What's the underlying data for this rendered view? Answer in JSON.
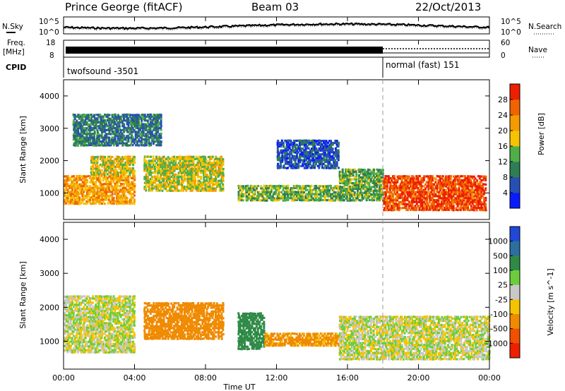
{
  "header": {
    "station": "Prince George (fitACF)",
    "beam": "Beam 03",
    "date": "22/Oct/2013"
  },
  "labels": {
    "nsky": "N.Sky",
    "nsearch": "N.Search",
    "freq": "Freq.",
    "freq_unit": "[MHz]",
    "nave": "Nave",
    "cpid": "CPID"
  },
  "top_panels": {
    "noise_ticks_left": [
      "10^5",
      "10^0"
    ],
    "noise_ticks_right": [
      "10^5",
      "10^0"
    ],
    "freq_ticks_left": [
      "18",
      "8"
    ],
    "nave_ticks_right": [
      "60",
      "0"
    ]
  },
  "cpid_modes": [
    {
      "text": "twofsound  -3501",
      "start_hour": 0
    },
    {
      "text": "normal (fast) 151",
      "start_hour": 18
    }
  ],
  "time_axis": {
    "label": "Time UT",
    "ticks": [
      "00:00",
      "04:00",
      "08:00",
      "12:00",
      "16:00",
      "20:00",
      "00:00"
    ],
    "range_hours": [
      0,
      24
    ]
  },
  "chart_data": [
    {
      "type": "heatmap",
      "title": "",
      "parameter": "Power",
      "colorbar_label": "Power [dB]",
      "xlabel": "",
      "ylabel": "Slant Range [km]",
      "xlim": [
        0,
        24
      ],
      "ylim": [
        180,
        4500
      ],
      "yticks": [
        1000,
        2000,
        3000,
        4000
      ],
      "colorbar_ticks": [
        "4",
        "8",
        "12",
        "16",
        "20",
        "24",
        "28"
      ],
      "colorbar_range": [
        0,
        32
      ],
      "colors": [
        "#0a1cff",
        "#2850b4",
        "#2e7d54",
        "#4fae46",
        "#f5c300",
        "#f59a00",
        "#f06400",
        "#ee1e00"
      ],
      "regions": [
        {
          "t0": 0.0,
          "t1": 4.0,
          "r0": 700,
          "r1": 1600,
          "v": 22
        },
        {
          "t0": 1.5,
          "t1": 4.0,
          "r0": 1600,
          "r1": 2200,
          "v": 18
        },
        {
          "t0": 4.5,
          "t1": 9.0,
          "r0": 1100,
          "r1": 2200,
          "v": 17
        },
        {
          "t0": 9.8,
          "t1": 15.5,
          "r0": 800,
          "r1": 1300,
          "v": 14
        },
        {
          "t0": 15.5,
          "t1": 18.0,
          "r0": 800,
          "r1": 1800,
          "v": 13
        },
        {
          "t0": 18.0,
          "t1": 23.8,
          "r0": 500,
          "r1": 1600,
          "v": 28
        },
        {
          "t0": 12.0,
          "t1": 15.5,
          "r0": 1800,
          "r1": 2700,
          "v": 6
        },
        {
          "t0": 0.5,
          "t1": 5.5,
          "r0": 2500,
          "r1": 3500,
          "v": 9
        }
      ]
    },
    {
      "type": "heatmap",
      "title": "",
      "parameter": "Velocity",
      "colorbar_label": "Velocity [m s^-1]",
      "xlabel": "Time UT",
      "ylabel": "Slant Range [km]",
      "xlim": [
        0,
        24
      ],
      "ylim": [
        180,
        4500
      ],
      "yticks": [
        1000,
        2000,
        3000,
        4000
      ],
      "colorbar_ticks": [
        "1000",
        "500",
        "100",
        "25",
        "-25",
        "-100",
        "-500",
        "-1000"
      ],
      "colors": [
        "#2147d8",
        "#2b6fa0",
        "#2f8a47",
        "#6ccd3c",
        "#c8c8c8",
        "#f4c400",
        "#f08a00",
        "#f05000",
        "#ee1e00"
      ],
      "regions": [
        {
          "t0": 0.0,
          "t1": 4.0,
          "r0": 700,
          "r1": 2400,
          "v": 0
        },
        {
          "t0": 4.5,
          "t1": 9.0,
          "r0": 1100,
          "r1": 2200,
          "v": -400
        },
        {
          "t0": 9.8,
          "t1": 11.3,
          "r0": 800,
          "r1": 1900,
          "v": 200
        },
        {
          "t0": 11.3,
          "t1": 15.5,
          "r0": 900,
          "r1": 1300,
          "v": -150
        },
        {
          "t0": 15.5,
          "t1": 24.0,
          "r0": 500,
          "r1": 1800,
          "v": 0
        }
      ]
    }
  ]
}
